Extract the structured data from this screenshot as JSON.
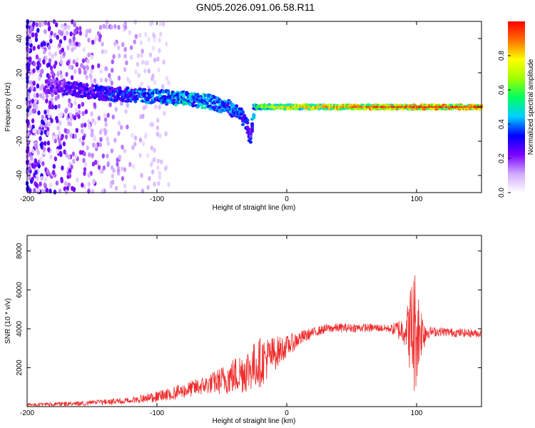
{
  "title": "GN05.2026.091.06.58.R11",
  "colors": {
    "signal": "#ef2b2b",
    "frame": "#000000",
    "background": "#ffffff"
  },
  "chart_data": [
    {
      "type": "heatmap",
      "name": "spectrogram",
      "xlabel": "Height of straight line (km)",
      "ylabel": "Frequency (Hz)",
      "xlim": [
        -200,
        150
      ],
      "ylim": [
        -50,
        50
      ],
      "x_ticks": [
        -200,
        -100,
        0,
        100
      ],
      "y_ticks": [
        -40,
        -20,
        0,
        20,
        40
      ],
      "colorbar": {
        "label": "Normalized spectral amplitude",
        "range": [
          0,
          1
        ],
        "ticks": [
          0.0,
          0.2,
          0.4,
          0.6,
          0.8
        ],
        "tick_labels": [
          "0.0",
          "0.2",
          "0.4",
          "0.6",
          "0.8"
        ],
        "colormap": [
          "#ffffff",
          "#d0a8ff",
          "#7a00ff",
          "#0000ff",
          "#00d0ff",
          "#00ff60",
          "#a0ff00",
          "#ffff00",
          "#ff7000",
          "#ff0000"
        ]
      },
      "ridge": [
        {
          "x": -180,
          "f": 12,
          "amp": 0.28
        },
        {
          "x": -160,
          "f": 10,
          "amp": 0.33
        },
        {
          "x": -140,
          "f": 8,
          "amp": 0.4
        },
        {
          "x": -120,
          "f": 7,
          "amp": 0.45
        },
        {
          "x": -100,
          "f": 6,
          "amp": 0.5
        },
        {
          "x": -80,
          "f": 5,
          "amp": 0.55
        },
        {
          "x": -60,
          "f": 3,
          "amp": 0.5
        },
        {
          "x": -45,
          "f": 0,
          "amp": 0.45
        },
        {
          "x": -35,
          "f": -5,
          "amp": 0.45
        },
        {
          "x": -30,
          "f": -12,
          "amp": 0.4
        },
        {
          "x": -28,
          "f": -20,
          "amp": 0.35
        },
        {
          "x": -25,
          "f": 0,
          "amp": 0.6
        },
        {
          "x": 0,
          "f": 0,
          "amp": 0.8
        },
        {
          "x": 50,
          "f": 0,
          "amp": 0.9
        },
        {
          "x": 100,
          "f": 0,
          "amp": 0.95
        },
        {
          "x": 150,
          "f": 0,
          "amp": 0.95
        }
      ]
    },
    {
      "type": "line",
      "name": "snr",
      "xlabel": "Height of straight line (km)",
      "ylabel": "SNR (10 * v/v)",
      "xlim": [
        -200,
        150
      ],
      "ylim": [
        0,
        8800
      ],
      "x_ticks": [
        -200,
        -100,
        0,
        100
      ],
      "y_ticks": [
        2000,
        4000,
        6000,
        8000
      ],
      "series": [
        {
          "name": "SNR",
          "x": [
            -200,
            -180,
            -160,
            -140,
            -120,
            -100,
            -90,
            -80,
            -70,
            -60,
            -50,
            -40,
            -30,
            -25,
            -20,
            -15,
            -10,
            -5,
            0,
            10,
            20,
            30,
            40,
            50,
            60,
            70,
            80,
            88,
            92,
            96,
            98,
            100,
            102,
            104,
            106,
            110,
            120,
            130,
            140,
            150
          ],
          "y": [
            100,
            120,
            160,
            230,
            330,
            500,
            640,
            800,
            980,
            1150,
            1350,
            1600,
            1900,
            2100,
            2300,
            2500,
            2700,
            2900,
            3100,
            3500,
            3800,
            4000,
            4050,
            4050,
            4050,
            4050,
            4000,
            3950,
            3950,
            3950,
            3900,
            3900,
            3900,
            3900,
            3850,
            3850,
            3850,
            3800,
            3780,
            3750
          ],
          "noise": [
            {
              "x": -200,
              "amp": 80
            },
            {
              "x": -120,
              "amp": 160
            },
            {
              "x": -60,
              "amp": 500
            },
            {
              "x": -35,
              "amp": 1100
            },
            {
              "x": -20,
              "amp": 1300
            },
            {
              "x": 0,
              "amp": 550
            },
            {
              "x": 20,
              "amp": 250
            },
            {
              "x": 80,
              "amp": 200
            },
            {
              "x": 92,
              "amp": 900
            },
            {
              "x": 98,
              "amp": 3600
            },
            {
              "x": 104,
              "amp": 1200
            },
            {
              "x": 110,
              "amp": 250
            },
            {
              "x": 150,
              "amp": 200
            }
          ]
        }
      ]
    }
  ]
}
